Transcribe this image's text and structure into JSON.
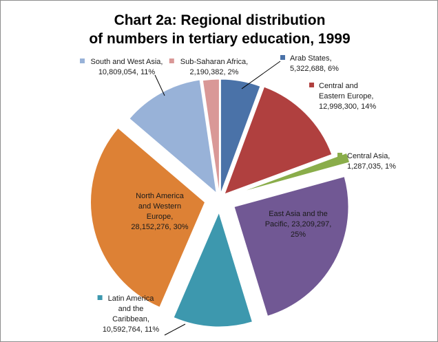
{
  "chart_data": {
    "type": "pie",
    "title": [
      "Chart 2a: Regional distribution",
      "of numbers in tertiary education, 1999"
    ],
    "slices": [
      {
        "name": "Arab States",
        "value": 5322688,
        "percent": 6,
        "color": "#4a72a8",
        "label_lines": [
          "Arab States,",
          "5,322,688, 6%"
        ]
      },
      {
        "name": "Central and Eastern Europe",
        "value": 12998300,
        "percent": 14,
        "color": "#b0403f",
        "label_lines": [
          "Central and",
          "Eastern Europe,",
          "12,998,300, 14%"
        ]
      },
      {
        "name": "Central Asia",
        "value": 1287035,
        "percent": 1,
        "color": "#8aad4a",
        "label_lines": [
          "Central Asia,",
          "1,287,035, 1%"
        ]
      },
      {
        "name": "East Asia and the Pacific",
        "value": 23209297,
        "percent": 25,
        "color": "#715894",
        "label_lines": [
          "East Asia and the",
          "Pacific, 23,209,297,",
          "25%"
        ]
      },
      {
        "name": "Latin America and the Caribbean",
        "value": 10592764,
        "percent": 11,
        "color": "#3d98ae",
        "label_lines": [
          "Latin America",
          "and the",
          "Caribbean,",
          "10,592,764, 11%"
        ]
      },
      {
        "name": "North America and Western Europe",
        "value": 28152276,
        "percent": 30,
        "color": "#dd8135",
        "label_lines": [
          "North America",
          "and Western",
          "Europe,",
          "28,152,276, 30%"
        ]
      },
      {
        "name": "South and West Asia",
        "value": 10809054,
        "percent": 11,
        "color": "#98b2d8",
        "label_lines": [
          "South and West Asia,",
          "10,809,054, 11%"
        ]
      },
      {
        "name": "Sub-Saharan Africa",
        "value": 2190382,
        "percent": 2,
        "color": "#d99897",
        "label_lines": [
          "Sub-Saharan Africa,",
          "2,190,382, 2%"
        ]
      }
    ]
  }
}
